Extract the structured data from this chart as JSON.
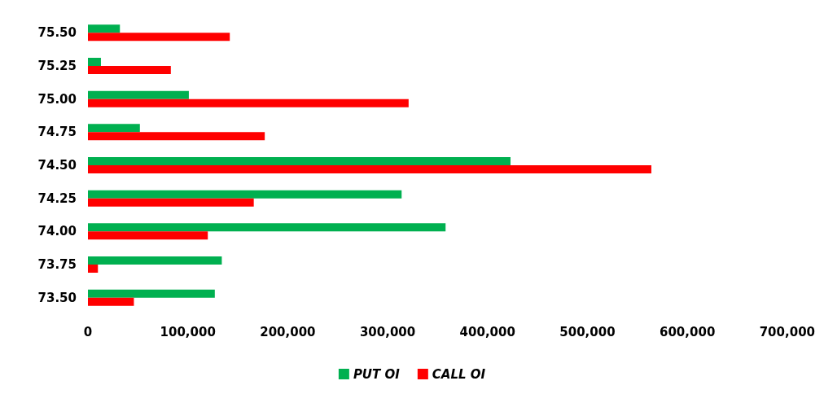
{
  "chart_data": {
    "type": "bar",
    "orientation": "horizontal",
    "categories": [
      "75.50",
      "75.25",
      "75.00",
      "74.75",
      "74.50",
      "74.25",
      "74.00",
      "73.75",
      "73.50"
    ],
    "series": [
      {
        "name": "PUT OI",
        "color": "#00b050",
        "values": [
          32000,
          13000,
          101000,
          52000,
          423000,
          314000,
          358000,
          134000,
          127000
        ]
      },
      {
        "name": "CALL OI",
        "color": "#ff0000",
        "values": [
          142000,
          83000,
          321000,
          177000,
          564000,
          166000,
          120000,
          10000,
          46000
        ]
      }
    ],
    "xlim": [
      0,
      700000
    ],
    "xticks": [
      0,
      {
        "value": 100000,
        "label": "100,000"
      },
      {
        "value": 200000,
        "label": "200,000"
      },
      {
        "value": 300000,
        "label": "300,000"
      },
      {
        "value": 400000,
        "label": "400,000"
      },
      {
        "value": 500000,
        "label": "500,000"
      },
      {
        "value": 600000,
        "label": "600,000"
      },
      {
        "value": 700000,
        "label": "700,000"
      }
    ],
    "grid": false,
    "legend": "bottom"
  }
}
